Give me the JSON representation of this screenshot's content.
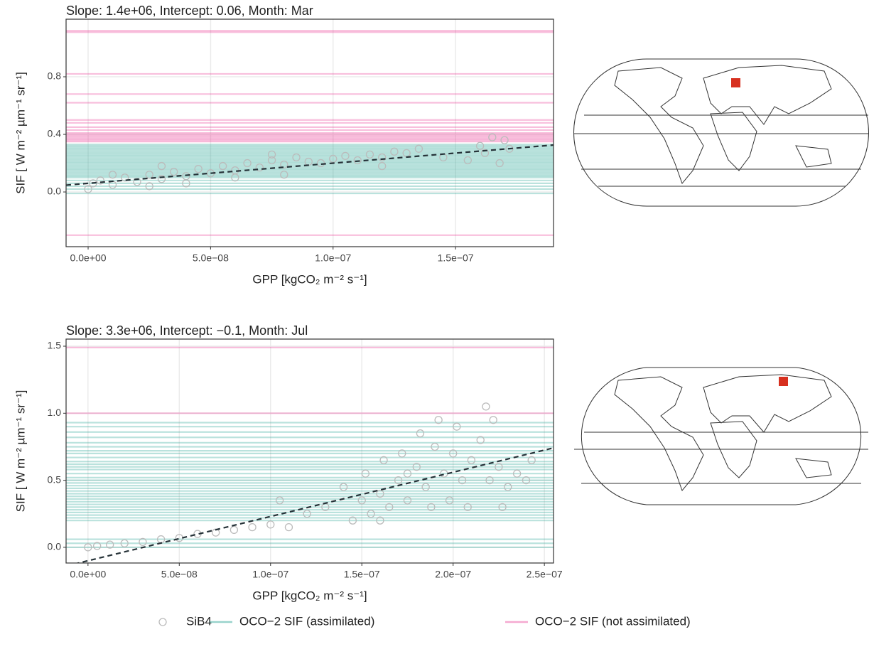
{
  "chart_data": [
    {
      "type": "scatter",
      "title": "Slope: 1.4e+06,  Intercept: 0.06,  Month: Mar",
      "x_label": "GPP [kgCO₂ m⁻² s⁻¹]",
      "y_label": "SIF [ W m⁻² µm⁻¹ sr⁻¹]",
      "xlim": [
        -9e-09,
        1.9e-07
      ],
      "ylim": [
        -0.38,
        1.2
      ],
      "xticks": [
        {
          "value": 0,
          "label": "0.0e+00"
        },
        {
          "value": 5e-08,
          "label": "5.0e−08"
        },
        {
          "value": 1e-07,
          "label": "1.0e−07"
        },
        {
          "value": 1.5e-07,
          "label": "1.5e−07"
        }
      ],
      "yticks": [
        {
          "value": 0,
          "label": "0.0"
        },
        {
          "value": 0.4,
          "label": "0.4"
        },
        {
          "value": 0.8,
          "label": "0.8"
        }
      ],
      "grid": true,
      "fit_line": {
        "slope": 1400000,
        "intercept": 0.06
      },
      "series": [
        {
          "name": "SiB4",
          "color": "#bbbbbb",
          "x": [
            0,
            2e-09,
            5e-09,
            1e-08,
            1.5e-08,
            2e-08,
            2.5e-08,
            3e-08,
            3.5e-08,
            4e-08,
            4.5e-08,
            5e-08,
            5.5e-08,
            6e-08,
            6.5e-08,
            7e-08,
            7.5e-08,
            8e-08,
            8.5e-08,
            9e-08,
            9.5e-08,
            1e-07,
            1.05e-07,
            1.1e-07,
            1.15e-07,
            1.2e-07,
            1.25e-07,
            1.3e-07,
            1.35e-07,
            1.45e-07,
            1.55e-07,
            1.6e-07,
            1.62e-07,
            1.65e-07,
            1.68e-07,
            1.7e-07,
            1.72e-07,
            2.5e-08,
            4e-08,
            6e-08,
            7.5e-08,
            8e-08,
            3e-08,
            1e-08,
            1.2e-07
          ],
          "y": [
            0.02,
            0.06,
            0.08,
            0.05,
            0.1,
            0.07,
            0.12,
            0.09,
            0.14,
            0.11,
            0.16,
            0.13,
            0.18,
            0.15,
            0.2,
            0.17,
            0.22,
            0.19,
            0.24,
            0.21,
            0.2,
            0.23,
            0.25,
            0.22,
            0.26,
            0.24,
            0.28,
            0.27,
            0.3,
            0.24,
            0.22,
            0.32,
            0.27,
            0.38,
            0.2,
            0.36,
            0.3,
            0.04,
            0.06,
            0.1,
            0.26,
            0.12,
            0.18,
            0.12,
            0.18
          ]
        },
        {
          "name": "OCO−2 SIF (assimilated)",
          "color": "#1b9e8f",
          "values": [
            0.33,
            0.32,
            0.31,
            0.3,
            0.29,
            0.28,
            0.27,
            0.26,
            0.25,
            0.24,
            0.23,
            0.22,
            0.21,
            0.2,
            0.19,
            0.18,
            0.17,
            0.16,
            0.15,
            0.14,
            0.13,
            0.12,
            0.11,
            0.1,
            0.08,
            0.06,
            0.04,
            0.02,
            -0.01
          ]
        },
        {
          "name": "OCO−2 SIF (not assimilated)",
          "color": "#e7298a",
          "values": [
            1.12,
            1.11,
            0.82,
            0.68,
            0.62,
            0.5,
            0.48,
            0.45,
            0.43,
            0.41,
            0.4,
            0.39,
            0.38,
            0.37,
            0.36,
            0.35,
            -0.3
          ]
        }
      ]
    },
    {
      "type": "scatter",
      "title": "Slope: 3.3e+06,  Intercept: −0.1,  Month: Jul",
      "x_label": "GPP [kgCO₂ m⁻² s⁻¹]",
      "y_label": "SIF [ W m⁻² µm⁻¹ sr⁻¹]",
      "xlim": [
        -1.2e-08,
        2.55e-07
      ],
      "ylim": [
        -0.117,
        1.553
      ],
      "xticks": [
        {
          "value": 0,
          "label": "0.0e+00"
        },
        {
          "value": 5e-08,
          "label": "5.0e−08"
        },
        {
          "value": 1e-07,
          "label": "1.0e−07"
        },
        {
          "value": 1.5e-07,
          "label": "1.5e−07"
        },
        {
          "value": 2e-07,
          "label": "2.0e−07"
        },
        {
          "value": 2.5e-07,
          "label": "2.5e−07"
        }
      ],
      "yticks": [
        {
          "value": 0,
          "label": "0.0"
        },
        {
          "value": 0.5,
          "label": "0.5"
        },
        {
          "value": 1,
          "label": "1.0"
        },
        {
          "value": 1.5,
          "label": "1.5"
        }
      ],
      "grid": true,
      "fit_line": {
        "slope": 3300000,
        "intercept": -0.1
      },
      "series": [
        {
          "name": "SiB4",
          "color": "#bbbbbb",
          "x": [
            0,
            5e-09,
            1.2e-08,
            2e-08,
            3e-08,
            4e-08,
            5e-08,
            6e-08,
            7e-08,
            8e-08,
            9e-08,
            1e-07,
            1.05e-07,
            1.1e-07,
            1.2e-07,
            1.3e-07,
            1.4e-07,
            1.45e-07,
            1.5e-07,
            1.52e-07,
            1.55e-07,
            1.6e-07,
            1.62e-07,
            1.65e-07,
            1.7e-07,
            1.72e-07,
            1.75e-07,
            1.8e-07,
            1.82e-07,
            1.85e-07,
            1.88e-07,
            1.9e-07,
            1.92e-07,
            1.95e-07,
            1.98e-07,
            2e-07,
            2.02e-07,
            2.05e-07,
            2.08e-07,
            2.1e-07,
            2.15e-07,
            2.18e-07,
            2.2e-07,
            2.22e-07,
            2.25e-07,
            2.27e-07,
            2.3e-07,
            2.35e-07,
            2.4e-07,
            2.43e-07,
            1.6e-07,
            1.75e-07
          ],
          "y": [
            0,
            0.01,
            0.02,
            0.03,
            0.04,
            0.06,
            0.07,
            0.1,
            0.11,
            0.13,
            0.15,
            0.17,
            0.35,
            0.15,
            0.25,
            0.3,
            0.45,
            0.2,
            0.35,
            0.55,
            0.25,
            0.4,
            0.65,
            0.3,
            0.5,
            0.7,
            0.35,
            0.6,
            0.85,
            0.45,
            0.3,
            0.75,
            0.95,
            0.55,
            0.35,
            0.7,
            0.9,
            0.5,
            0.3,
            0.65,
            0.8,
            1.05,
            0.5,
            0.95,
            0.6,
            0.3,
            0.45,
            0.55,
            0.5,
            0.65,
            0.2,
            0.55
          ]
        },
        {
          "name": "OCO−2 SIF (assimilated)",
          "color": "#1b9e8f",
          "values": [
            0.93,
            0.9,
            0.86,
            0.82,
            0.78,
            0.75,
            0.72,
            0.7,
            0.67,
            0.64,
            0.62,
            0.6,
            0.58,
            0.55,
            0.52,
            0.5,
            0.48,
            0.46,
            0.44,
            0.42,
            0.4,
            0.38,
            0.36,
            0.34,
            0.32,
            0.3,
            0.28,
            0.26,
            0.24,
            0.22,
            0.2,
            0.06,
            0.03,
            0
          ]
        },
        {
          "name": "OCO−2 SIF (not assimilated)",
          "color": "#e7298a",
          "values": [
            1.49,
            1
          ]
        }
      ]
    }
  ]
}
